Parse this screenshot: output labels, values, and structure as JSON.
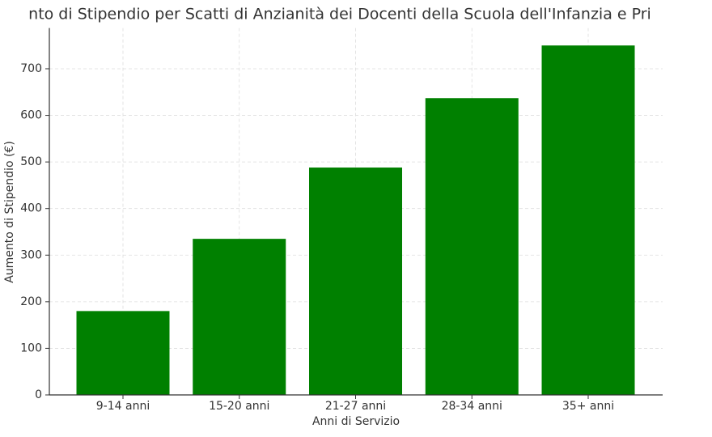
{
  "chart_data": {
    "type": "bar",
    "title": "nto di Stipendio per Scatti di Anzianità dei Docenti della Scuola dell'Infanzia e Pri",
    "x_label": "Anni di Servizio",
    "y_label": "Aumento di Stipendio (€)",
    "categories": [
      "9-14 anni",
      "15-20 anni",
      "21-27 anni",
      "28-34 anni",
      "35+ anni"
    ],
    "values": [
      180,
      335,
      488,
      637,
      750
    ],
    "color": "#008000",
    "ylim": [
      0,
      787.5
    ],
    "yticks": [
      0,
      100,
      200,
      300,
      400,
      500,
      600,
      700
    ],
    "grid": true
  }
}
